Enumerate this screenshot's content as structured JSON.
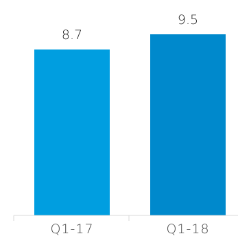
{
  "chart_data": {
    "type": "bar",
    "categories": [
      "Q1-17",
      "Q1-18"
    ],
    "values": [
      8.7,
      9.5
    ],
    "data_labels": [
      "8.7",
      "9.5"
    ],
    "title": "",
    "xlabel": "",
    "ylabel": "",
    "ylim": [
      0,
      9.5
    ],
    "grid": false,
    "legend": "none",
    "colors": [
      "#009ee0",
      "#0089cc"
    ]
  }
}
